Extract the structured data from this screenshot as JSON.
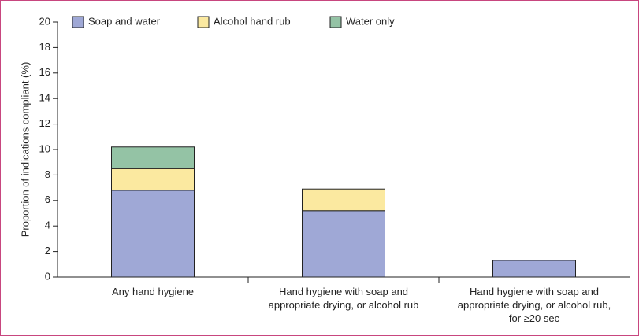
{
  "chart_data": {
    "type": "stacked_bar",
    "y_label": "Proportion of indications compliant (%)",
    "categories": [
      "Any hand hygiene",
      "Hand hygiene with soap and appropriate drying, or alcohol rub",
      "Hand hygiene with soap and appropriate drying, or alcohol rub, for ≥20 sec"
    ],
    "series": [
      {
        "name": "Soap and water",
        "color": "#9fa8d6",
        "values": [
          6.8,
          5.2,
          1.3
        ]
      },
      {
        "name": "Alcohol hand rub",
        "color": "#fbe9a0",
        "values": [
          1.7,
          1.7,
          0
        ]
      },
      {
        "name": "Water only",
        "color": "#94c3a5",
        "values": [
          1.7,
          0,
          0
        ]
      }
    ],
    "ylim": [
      0,
      20
    ],
    "yticks": [
      0,
      2,
      4,
      6,
      8,
      10,
      12,
      14,
      16,
      18,
      20
    ]
  }
}
